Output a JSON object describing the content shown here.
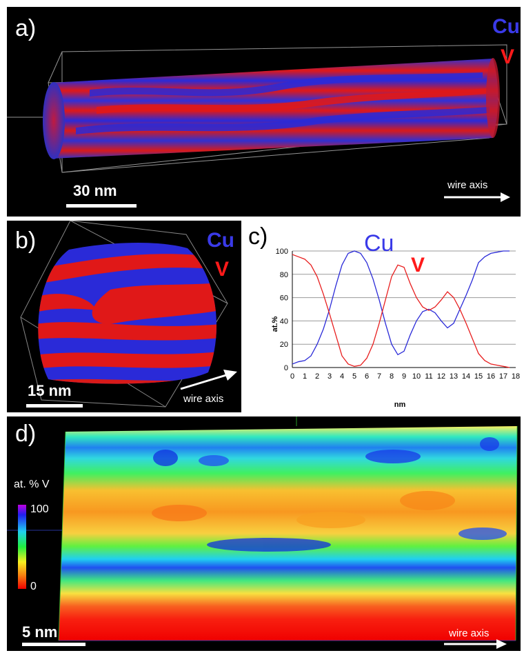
{
  "panels": {
    "a": {
      "label": "a)",
      "cu": "Cu",
      "v": "V",
      "scale": "30 nm",
      "axis": "wire axis"
    },
    "b": {
      "label": "b)",
      "cu": "Cu",
      "v": "V",
      "scale": "15 nm",
      "axis": "wire axis"
    },
    "c": {
      "label": "c)",
      "cu": "Cu",
      "v": "V"
    },
    "d": {
      "label": "d)",
      "scale": "5 nm",
      "axis": "wire axis",
      "colorbar_title": "at. % V",
      "colorbar_max": "100",
      "colorbar_min": "0"
    }
  },
  "colors": {
    "cu": "#3a3ae8",
    "v": "#ff1a1a",
    "background": "#000000"
  },
  "chart_data": {
    "type": "line",
    "title": "",
    "xlabel": "nm",
    "ylabel": "at.%",
    "xlim": [
      0,
      18
    ],
    "ylim": [
      0,
      100
    ],
    "xticks": [
      "0",
      "1",
      "2",
      "3",
      "4",
      "5",
      "6",
      "7",
      "8",
      "9",
      "10",
      "11",
      "12",
      "13",
      "14",
      "15",
      "16",
      "17",
      "18"
    ],
    "yticks": [
      "0",
      "20",
      "40",
      "60",
      "80",
      "100"
    ],
    "grid": "horizontal",
    "series": [
      {
        "name": "Cu",
        "color": "#2a2ad8",
        "x": [
          0,
          0.5,
          1,
          1.5,
          2,
          2.5,
          3,
          3.5,
          4,
          4.5,
          5,
          5.5,
          6,
          6.5,
          7,
          7.5,
          8,
          8.5,
          9,
          9.5,
          10,
          10.5,
          11,
          11.5,
          12,
          12.5,
          13,
          13.5,
          14,
          14.5,
          15,
          15.5,
          16,
          16.5,
          17,
          17.5
        ],
        "y": [
          3,
          5,
          6,
          10,
          20,
          33,
          50,
          70,
          88,
          98,
          100,
          98,
          90,
          76,
          58,
          38,
          20,
          11,
          14,
          28,
          40,
          48,
          50,
          47,
          40,
          34,
          38,
          50,
          62,
          75,
          90,
          95,
          98,
          99,
          100,
          100
        ]
      },
      {
        "name": "V",
        "color": "#e81e1e",
        "x": [
          0,
          0.5,
          1,
          1.5,
          2,
          2.5,
          3,
          3.5,
          4,
          4.5,
          5,
          5.5,
          6,
          6.5,
          7,
          7.5,
          8,
          8.5,
          9,
          9.5,
          10,
          10.5,
          11,
          11.5,
          12,
          12.5,
          13,
          13.5,
          14,
          14.5,
          15,
          15.5,
          16,
          16.5,
          17,
          17.5
        ],
        "y": [
          97,
          95,
          93,
          88,
          78,
          63,
          46,
          28,
          10,
          3,
          1,
          2,
          8,
          20,
          38,
          58,
          78,
          88,
          86,
          72,
          60,
          52,
          49,
          52,
          58,
          65,
          60,
          50,
          38,
          25,
          12,
          6,
          3,
          2,
          1,
          0
        ]
      }
    ]
  }
}
